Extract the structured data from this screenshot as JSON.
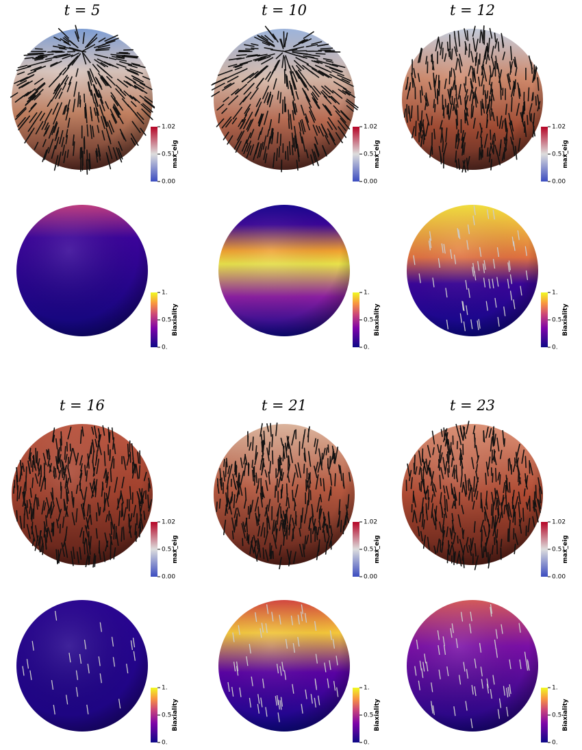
{
  "panels": [
    {
      "title": "t = 5",
      "top_bar": {
        "label": "max_eig",
        "ticks": [
          "1.02",
          "0.51",
          "0.00"
        ]
      },
      "bottom_bar": {
        "label": "Biaxiality",
        "ticks": [
          "1.",
          "0.5",
          "0."
        ]
      }
    },
    {
      "title": "t = 10",
      "top_bar": {
        "label": "max_eig",
        "ticks": [
          "1.02",
          "0.51",
          "0.00"
        ]
      },
      "bottom_bar": {
        "label": "Biaxiality",
        "ticks": [
          "1.",
          "0.5",
          "0."
        ]
      }
    },
    {
      "title": "t = 12",
      "top_bar": {
        "label": "max_eig",
        "ticks": [
          "1.02",
          "0.51",
          "0.00"
        ]
      },
      "bottom_bar": {
        "label": "Biaxiality",
        "ticks": [
          "1.",
          "0.5",
          "0."
        ]
      }
    },
    {
      "title": "t = 16",
      "top_bar": {
        "label": "max_eig",
        "ticks": [
          "1.02",
          "0.51",
          "0.00"
        ]
      },
      "bottom_bar": {
        "label": "Biaxiality",
        "ticks": [
          "1.",
          "0.5",
          "0."
        ]
      }
    },
    {
      "title": "t = 21",
      "top_bar": {
        "label": "max_eig",
        "ticks": [
          "1.02",
          "0.51",
          "0.00"
        ]
      },
      "bottom_bar": {
        "label": "Biaxiality",
        "ticks": [
          "1.",
          "0.5",
          "0."
        ]
      }
    },
    {
      "title": "t = 23",
      "top_bar": {
        "label": "max_eig",
        "ticks": [
          "1.02",
          "0.51",
          "0.00"
        ]
      },
      "bottom_bar": {
        "label": "Biaxiality",
        "ticks": [
          "1.",
          "0.5",
          "0."
        ]
      }
    }
  ]
}
